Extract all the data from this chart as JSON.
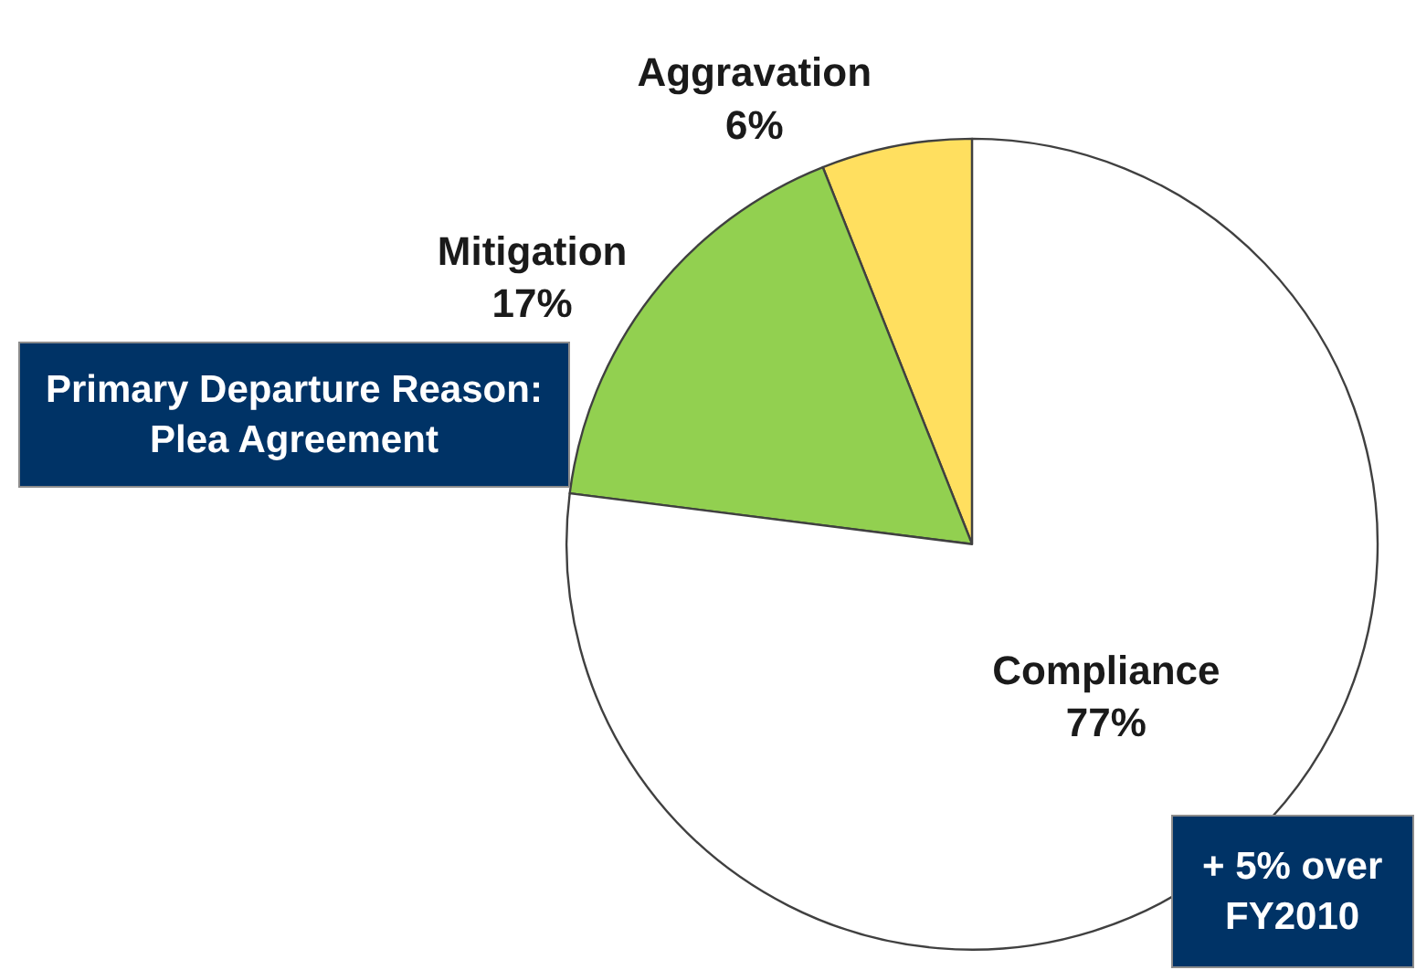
{
  "chart_data": {
    "type": "pie",
    "categories": [
      "Aggravation",
      "Mitigation",
      "Compliance"
    ],
    "values": [
      6,
      17,
      77
    ],
    "value_labels": [
      "6%",
      "17%",
      "77%"
    ],
    "colors": [
      "#ffdf5f",
      "#92d050",
      "#ffffff"
    ],
    "legend": false,
    "annotations": [
      "Primary Departure Reason:\nPlea Agreement",
      "+ 5% over\nFY2010"
    ]
  }
}
